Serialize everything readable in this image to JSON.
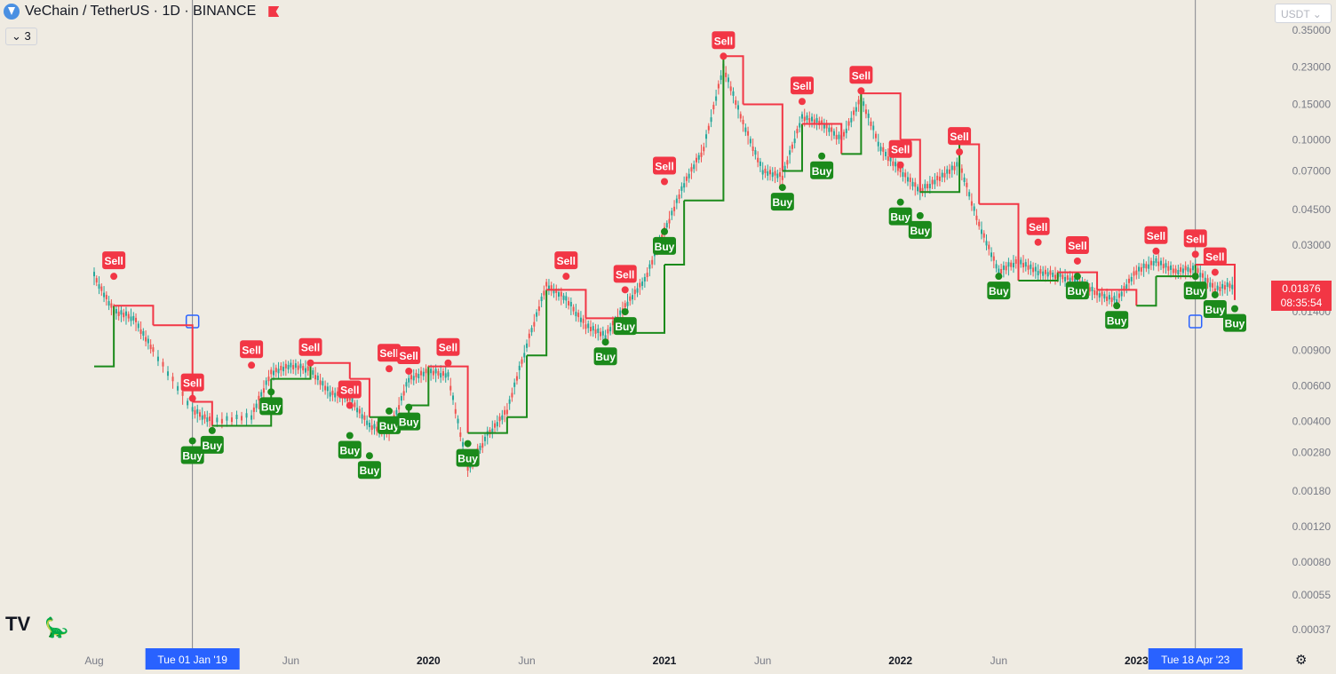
{
  "header": {
    "symbol": "VeChain / TetherUS · 1D · BINANCE",
    "indicators_count": "3"
  },
  "currency_select": "USDT",
  "price_tag": {
    "price": "0.01876",
    "countdown": "08:35:54"
  },
  "colors": {
    "up": "#26a69a",
    "down": "#ef5350",
    "buy": "#089981",
    "sell": "#f23645",
    "stop_up": "#1b8a1b",
    "stop_down": "#f23645",
    "crosshair": "#2962ff",
    "bg": "#efebe2"
  },
  "icons": [
    "tradingview-logo-icon",
    "dinosaur-icon",
    "settings-gear-icon"
  ],
  "chart_data": {
    "type": "line",
    "title": "VeChain / TetherUS · 1D · BINANCE",
    "y_scale": "log",
    "y_ticks": [
      "0.35000",
      "0.23000",
      "0.15000",
      "0.10000",
      "0.07000",
      "0.04500",
      "0.03000",
      "0.01400",
      "0.00900",
      "0.00600",
      "0.00400",
      "0.00280",
      "0.00180",
      "0.00120",
      "0.00080",
      "0.00055",
      "0.00037"
    ],
    "x_ticks": [
      "Aug",
      "Jun",
      "2020",
      "Jun",
      "2021",
      "Jun",
      "2022",
      "Jun",
      "2023"
    ],
    "crosshair_labels": [
      "Tue 01 Jan '19",
      "Tue 18 Apr '23"
    ],
    "series": [
      {
        "name": "price",
        "x": [
          "2018-08",
          "2018-09",
          "2018-10",
          "2018-11",
          "2019-01",
          "2019-02",
          "2019-04",
          "2019-05",
          "2019-06",
          "2019-07",
          "2019-08",
          "2019-09",
          "2019-10",
          "2019-11",
          "2019-12",
          "2020-01",
          "2020-02",
          "2020-03",
          "2020-04",
          "2020-05",
          "2020-06",
          "2020-07",
          "2020-08",
          "2020-09",
          "2020-10",
          "2020-11",
          "2020-12",
          "2021-01",
          "2021-02",
          "2021-03",
          "2021-04",
          "2021-05",
          "2021-06",
          "2021-07",
          "2021-08",
          "2021-09",
          "2021-10",
          "2021-11",
          "2021-12",
          "2022-01",
          "2022-02",
          "2022-03",
          "2022-04",
          "2022-05",
          "2022-06",
          "2022-07",
          "2022-08",
          "2022-09",
          "2022-10",
          "2022-11",
          "2022-12",
          "2023-01",
          "2023-02",
          "2023-03",
          "2023-04",
          "2023-05",
          "2023-06"
        ],
        "y": [
          0.021,
          0.014,
          0.013,
          0.009,
          0.0045,
          0.004,
          0.0042,
          0.007,
          0.0075,
          0.0072,
          0.0055,
          0.0052,
          0.0038,
          0.0035,
          0.0065,
          0.007,
          0.0068,
          0.0023,
          0.0034,
          0.0045,
          0.0095,
          0.019,
          0.016,
          0.012,
          0.0105,
          0.015,
          0.02,
          0.035,
          0.06,
          0.09,
          0.23,
          0.12,
          0.07,
          0.065,
          0.13,
          0.12,
          0.1,
          0.16,
          0.09,
          0.07,
          0.055,
          0.065,
          0.075,
          0.038,
          0.022,
          0.025,
          0.022,
          0.021,
          0.02,
          0.017,
          0.016,
          0.022,
          0.025,
          0.022,
          0.023,
          0.018,
          0.019
        ]
      },
      {
        "name": "stop",
        "x": [
          "2018-08",
          "2018-09",
          "2018-11",
          "2019-01",
          "2019-02",
          "2019-05",
          "2019-07",
          "2019-09",
          "2019-10",
          "2019-12",
          "2020-01",
          "2020-03",
          "2020-05",
          "2020-06",
          "2020-07",
          "2020-09",
          "2020-11",
          "2021-01",
          "2021-02",
          "2021-04",
          "2021-05",
          "2021-07",
          "2021-08",
          "2021-10",
          "2021-11",
          "2022-01",
          "2022-02",
          "2022-04",
          "2022-05",
          "2022-07",
          "2022-09",
          "2022-11",
          "2023-01",
          "2023-02",
          "2023-04",
          "2023-06"
        ],
        "y": [
          0.0075,
          0.015,
          0.012,
          0.005,
          0.0038,
          0.0065,
          0.0078,
          0.0065,
          0.0042,
          0.0048,
          0.0075,
          0.0035,
          0.0042,
          0.0085,
          0.018,
          0.013,
          0.011,
          0.024,
          0.05,
          0.26,
          0.15,
          0.07,
          0.12,
          0.085,
          0.17,
          0.1,
          0.055,
          0.095,
          0.048,
          0.02,
          0.022,
          0.018,
          0.015,
          0.021,
          0.024,
          0.016
        ]
      }
    ],
    "signals": [
      {
        "label": "Sell",
        "x": "2018-09",
        "y": 0.021
      },
      {
        "label": "Sell",
        "x": "2019-01",
        "y": 0.0052
      },
      {
        "label": "Buy",
        "x": "2019-01",
        "y": 0.0032
      },
      {
        "label": "Buy",
        "x": "2019-02",
        "y": 0.0036
      },
      {
        "label": "Sell",
        "x": "2019-04",
        "y": 0.0076
      },
      {
        "label": "Buy",
        "x": "2019-05",
        "y": 0.0056
      },
      {
        "label": "Sell",
        "x": "2019-07",
        "y": 0.0078
      },
      {
        "label": "Sell",
        "x": "2019-09",
        "y": 0.0048
      },
      {
        "label": "Buy",
        "x": "2019-09",
        "y": 0.0034
      },
      {
        "label": "Buy",
        "x": "2019-10",
        "y": 0.0027
      },
      {
        "label": "Sell",
        "x": "2019-11",
        "y": 0.0073
      },
      {
        "label": "Sell",
        "x": "2019-12",
        "y": 0.0071
      },
      {
        "label": "Buy",
        "x": "2019-11",
        "y": 0.0045
      },
      {
        "label": "Buy",
        "x": "2019-12",
        "y": 0.0047
      },
      {
        "label": "Sell",
        "x": "2020-02",
        "y": 0.0078
      },
      {
        "label": "Buy",
        "x": "2020-03",
        "y": 0.0031
      },
      {
        "label": "Sell",
        "x": "2020-08",
        "y": 0.021
      },
      {
        "label": "Buy",
        "x": "2020-10",
        "y": 0.0099
      },
      {
        "label": "Sell",
        "x": "2020-11",
        "y": 0.018
      },
      {
        "label": "Buy",
        "x": "2020-11",
        "y": 0.014
      },
      {
        "label": "Sell",
        "x": "2021-01",
        "y": 0.062
      },
      {
        "label": "Buy",
        "x": "2021-01",
        "y": 0.035
      },
      {
        "label": "Sell",
        "x": "2021-04",
        "y": 0.26
      },
      {
        "label": "Buy",
        "x": "2021-07",
        "y": 0.058
      },
      {
        "label": "Sell",
        "x": "2021-08",
        "y": 0.155
      },
      {
        "label": "Buy",
        "x": "2021-09",
        "y": 0.083
      },
      {
        "label": "Sell",
        "x": "2021-11",
        "y": 0.175
      },
      {
        "label": "Sell",
        "x": "2022-01",
        "y": 0.075
      },
      {
        "label": "Buy",
        "x": "2022-01",
        "y": 0.049
      },
      {
        "label": "Buy",
        "x": "2022-02",
        "y": 0.042
      },
      {
        "label": "Sell",
        "x": "2022-04",
        "y": 0.087
      },
      {
        "label": "Buy",
        "x": "2022-06",
        "y": 0.021
      },
      {
        "label": "Sell",
        "x": "2022-08",
        "y": 0.031
      },
      {
        "label": "Sell",
        "x": "2022-10",
        "y": 0.025
      },
      {
        "label": "Buy",
        "x": "2022-10",
        "y": 0.021
      },
      {
        "label": "Buy",
        "x": "2022-12",
        "y": 0.015
      },
      {
        "label": "Sell",
        "x": "2023-02",
        "y": 0.028
      },
      {
        "label": "Sell",
        "x": "2023-04",
        "y": 0.027
      },
      {
        "label": "Buy",
        "x": "2023-04",
        "y": 0.021
      },
      {
        "label": "Sell",
        "x": "2023-05",
        "y": 0.022
      },
      {
        "label": "Buy",
        "x": "2023-05",
        "y": 0.017
      },
      {
        "label": "Buy",
        "x": "2023-06",
        "y": 0.0145
      }
    ],
    "grid": false,
    "legend": "top-left"
  }
}
